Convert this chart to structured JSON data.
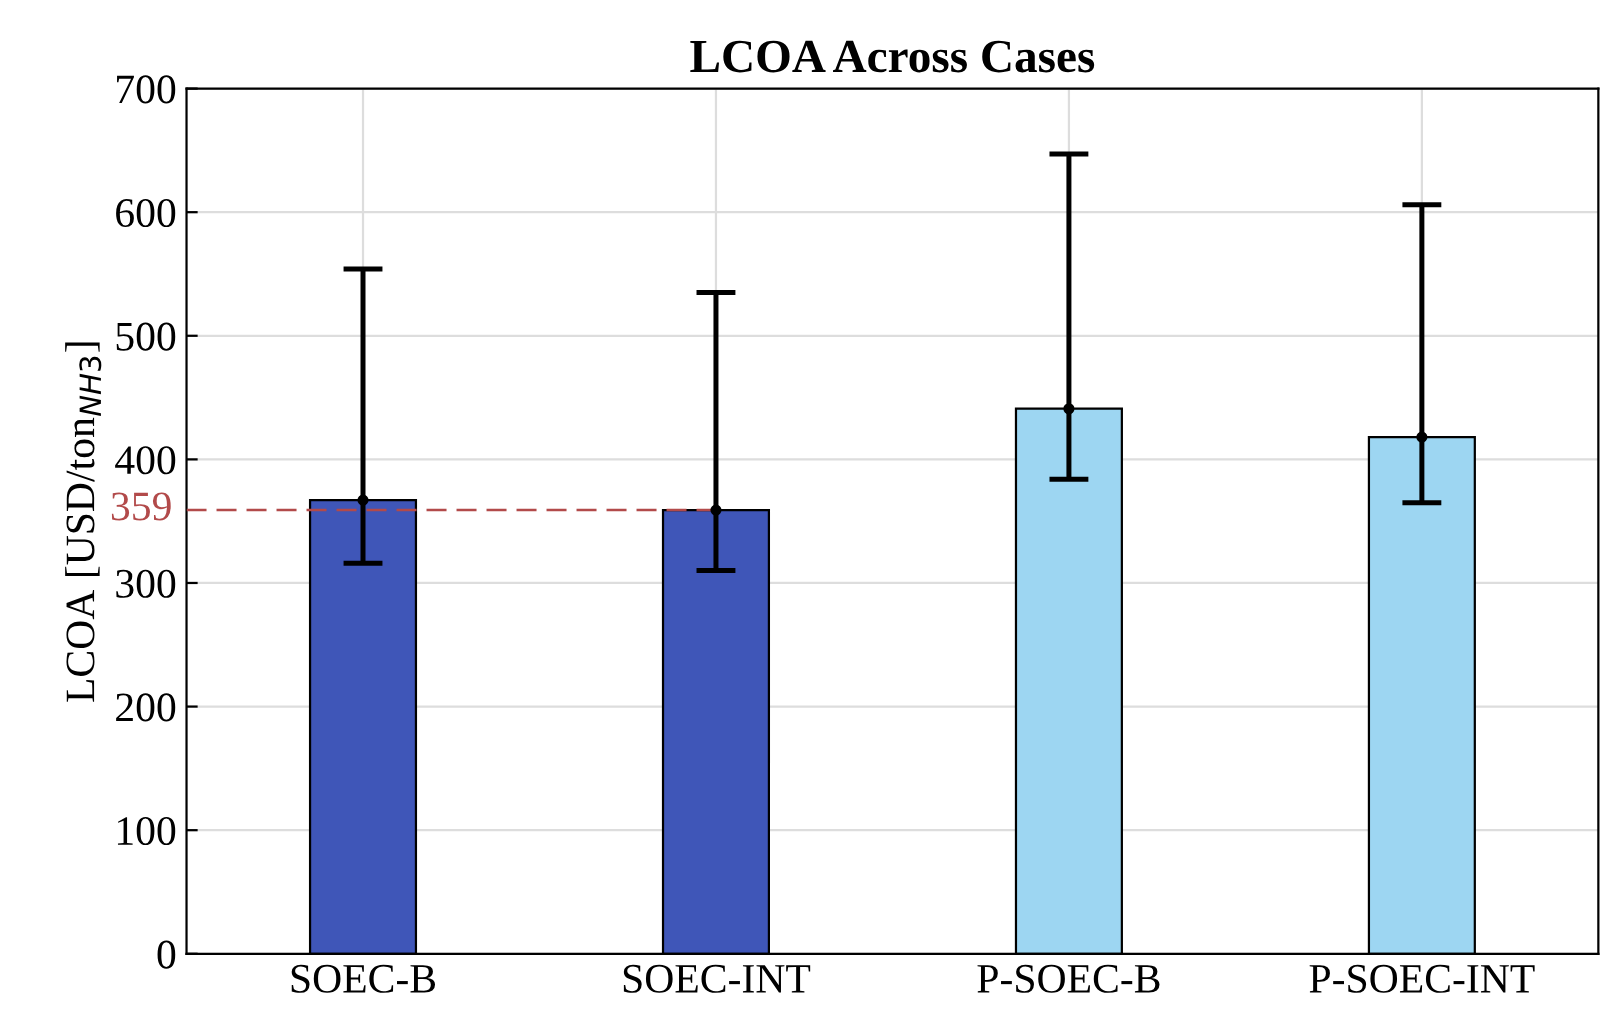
{
  "chart_data": {
    "type": "bar",
    "title": "LCOA Across Cases",
    "ylabel": "LCOA [USD/ton$_{NH3}$]",
    "categories": [
      "SOEC-B",
      "SOEC-INT",
      "P-SOEC-B",
      "P-SOEC-INT"
    ],
    "values": [
      367,
      359,
      441,
      418
    ],
    "colors": [
      "#3f56b8",
      "#3f56b8",
      "#9dd6f2",
      "#9dd6f2"
    ],
    "errors": [
      [
        316,
        554
      ],
      [
        310,
        535
      ],
      [
        384,
        647
      ],
      [
        365,
        606
      ]
    ],
    "series": [
      {
        "type": "scatter",
        "x": [
          "SOEC-B",
          "SOEC-INT",
          "P-SOEC-B",
          "P-SOEC-INT"
        ],
        "values": [
          367,
          359,
          441,
          418
        ],
        "color": "#000000"
      }
    ],
    "ylim": [
      0,
      700
    ],
    "yticks": [
      0,
      100,
      200,
      300,
      400,
      500,
      600,
      700
    ],
    "ref_lines": [
      {
        "axis": "y",
        "value": 359,
        "label": "359",
        "color": "#b24a4a",
        "line_style": "dashed"
      }
    ],
    "grid": true
  }
}
